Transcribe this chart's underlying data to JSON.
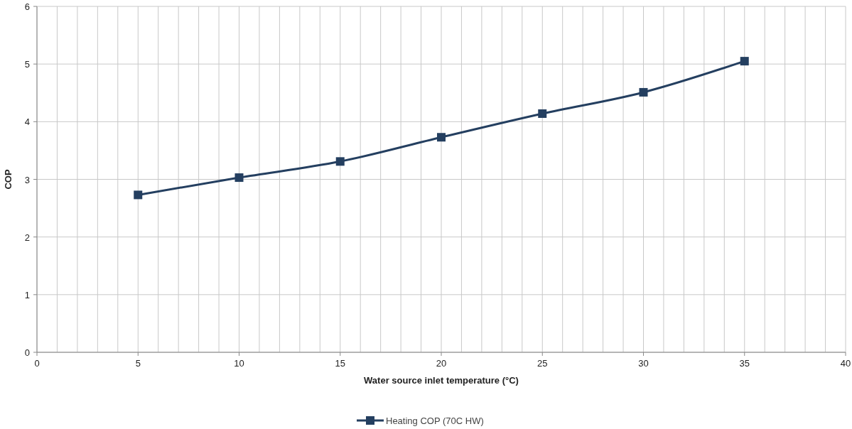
{
  "chart_data": {
    "type": "line",
    "xlabel": "Water source inlet temperature (°C)",
    "ylabel": "COP",
    "x": [
      5,
      10,
      15,
      20,
      25,
      30,
      35
    ],
    "series": [
      {
        "name": "Heating COP (70C HW)",
        "color": "#243f60",
        "values": [
          2.73,
          3.03,
          3.31,
          3.73,
          4.14,
          4.51,
          5.05
        ]
      }
    ],
    "xlim": [
      0,
      40
    ],
    "xticks": [
      0,
      {
        "value": 1,
        "label": null
      },
      {
        "value": 2,
        "label": null
      },
      {
        "value": 3,
        "label": null
      },
      {
        "value": 4,
        "label": null
      },
      5,
      {
        "value": 6,
        "label": null
      },
      {
        "value": 7,
        "label": null
      },
      {
        "value": 8,
        "label": null
      },
      {
        "value": 9,
        "label": null
      },
      10,
      {
        "value": 11,
        "label": null
      },
      {
        "value": 12,
        "label": null
      },
      {
        "value": 13,
        "label": null
      },
      {
        "value": 14,
        "label": null
      },
      15,
      {
        "value": 16,
        "label": null
      },
      {
        "value": 17,
        "label": null
      },
      {
        "value": 18,
        "label": null
      },
      {
        "value": 19,
        "label": null
      },
      20,
      {
        "value": 21,
        "label": null
      },
      {
        "value": 22,
        "label": null
      },
      {
        "value": 23,
        "label": null
      },
      {
        "value": 24,
        "label": null
      },
      25,
      {
        "value": 26,
        "label": null
      },
      {
        "value": 27,
        "label": null
      },
      {
        "value": 28,
        "label": null
      },
      {
        "value": 29,
        "label": null
      },
      30,
      {
        "value": 31,
        "label": null
      },
      {
        "value": 32,
        "label": null
      },
      {
        "value": 33,
        "label": null
      },
      {
        "value": 34,
        "label": null
      },
      35,
      {
        "value": 36,
        "label": null
      },
      {
        "value": 37,
        "label": null
      },
      {
        "value": 38,
        "label": null
      },
      {
        "value": 39,
        "label": null
      },
      40
    ],
    "ylim": [
      0,
      6
    ],
    "yticks": [
      0,
      1,
      2,
      3,
      4,
      5,
      6
    ],
    "grid": true,
    "legend": "bottom",
    "marker": "square",
    "line_style": "solid"
  }
}
